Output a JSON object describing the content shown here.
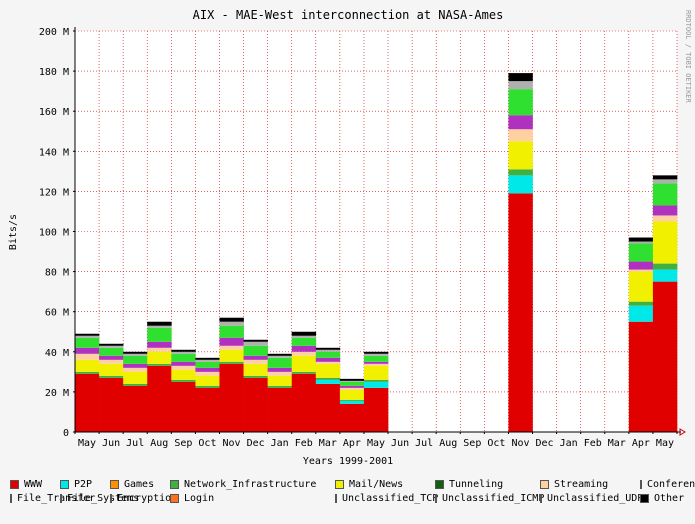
{
  "chart_data": {
    "type": "bar",
    "stacked": true,
    "title": "AIX - MAE-West interconnection at NASA-Ames",
    "xlabel": "Years 1999-2001",
    "ylabel": "Bits/s",
    "watermark": "RRDTOOL / TOBI OETIKER",
    "ylim": [
      0,
      200000000
    ],
    "yticks": [
      "0",
      "20 M",
      "40 M",
      "60 M",
      "80 M",
      "100 M",
      "120 M",
      "140 M",
      "160 M",
      "180 M",
      "200 M"
    ],
    "grid": true,
    "legend_position": "bottom",
    "categories": [
      "May",
      "Jun",
      "Jul",
      "Aug",
      "Sep",
      "Oct",
      "Nov",
      "Dec",
      "Jan",
      "Feb",
      "Mar",
      "Apr",
      "May",
      "Jun",
      "Jul",
      "Aug",
      "Sep",
      "Oct",
      "Nov",
      "Dec",
      "Jan",
      "Feb",
      "Mar",
      "Apr",
      "May"
    ],
    "series": [
      {
        "name": "WWW",
        "color": "#e00000",
        "values": [
          29,
          27,
          23,
          33,
          25,
          22,
          34,
          27,
          22,
          29,
          24,
          14,
          22,
          0,
          0,
          0,
          0,
          0,
          119,
          0,
          0,
          0,
          0,
          55,
          75
        ]
      },
      {
        "name": "P2P",
        "color": "#00e8e8",
        "values": [
          0,
          0,
          0,
          0,
          0,
          0,
          0,
          0,
          0,
          0,
          2,
          1.5,
          3,
          0,
          0,
          0,
          0,
          0,
          9,
          0,
          0,
          0,
          0,
          8,
          6
        ]
      },
      {
        "name": "Games",
        "color": "#ff9000",
        "values": [
          0,
          0,
          0,
          0,
          0,
          0,
          0,
          0,
          0,
          0,
          0,
          0,
          0,
          0,
          0,
          0,
          0,
          0,
          0,
          0,
          0,
          0,
          0,
          0,
          0
        ]
      },
      {
        "name": "Network_Infrastructure",
        "color": "#40b040",
        "values": [
          1,
          1,
          1,
          1,
          1,
          1,
          1,
          1,
          1,
          1,
          1,
          0.5,
          1,
          0,
          0,
          0,
          0,
          0,
          3,
          0,
          0,
          0,
          0,
          2,
          3
        ]
      },
      {
        "name": "Mail/News",
        "color": "#f0f000",
        "values": [
          6,
          6,
          6,
          6,
          5,
          5,
          6,
          6,
          5,
          8,
          7,
          5,
          7,
          0,
          0,
          0,
          0,
          0,
          14,
          0,
          0,
          0,
          0,
          15,
          21
        ]
      },
      {
        "name": "Tunneling",
        "color": "#106010",
        "values": [
          0,
          0,
          0,
          0,
          0,
          0,
          0,
          0,
          0,
          0,
          0,
          0,
          0,
          0,
          0,
          0,
          0,
          0,
          0,
          0,
          0,
          0,
          0,
          0,
          0
        ]
      },
      {
        "name": "Streaming",
        "color": "#ffd0a0",
        "values": [
          3,
          2,
          2,
          2,
          2,
          2,
          2,
          2,
          2,
          2,
          1,
          1,
          1,
          0,
          0,
          0,
          0,
          0,
          6,
          0,
          0,
          0,
          0,
          1,
          3
        ]
      },
      {
        "name": "Conferencing",
        "color": "#1a237e",
        "values": [
          0,
          0,
          0,
          0,
          0,
          0,
          0,
          0,
          0,
          0,
          0,
          0,
          0,
          0,
          0,
          0,
          0,
          0,
          0,
          0,
          0,
          0,
          0,
          0,
          0
        ]
      },
      {
        "name": "File_Transfer",
        "color": "#b030c0",
        "values": [
          3,
          2,
          2,
          3,
          2,
          2,
          4,
          2,
          2,
          3,
          2,
          1,
          1,
          0,
          0,
          0,
          0,
          0,
          7,
          0,
          0,
          0,
          0,
          4,
          5
        ]
      },
      {
        "name": "File_Systems",
        "color": "#f0a080",
        "values": [
          0,
          0,
          0,
          0,
          0,
          0,
          0,
          0,
          0,
          0,
          0,
          0,
          0,
          0,
          0,
          0,
          0,
          0,
          0,
          0,
          0,
          0,
          0,
          0,
          0
        ]
      },
      {
        "name": "Encryption",
        "color": "#2e7d32",
        "values": [
          0,
          0,
          0,
          0,
          0,
          0,
          0,
          0,
          0,
          0,
          0,
          0,
          0,
          0,
          0,
          0,
          0,
          0,
          0,
          0,
          0,
          0,
          0,
          0,
          0
        ]
      },
      {
        "name": "Login",
        "color": "#ff7020",
        "values": [
          0,
          0,
          0,
          0,
          0,
          0,
          0,
          0,
          0,
          0,
          0,
          0,
          0,
          0,
          0,
          0,
          0,
          0,
          0,
          0,
          0,
          0,
          0,
          0,
          0
        ]
      },
      {
        "name": "Unclassified_TCP",
        "color": "#30e030",
        "values": [
          5,
          4,
          4,
          7,
          4,
          3,
          6,
          5,
          5,
          4,
          3,
          2,
          3,
          0,
          0,
          0,
          0,
          0,
          13,
          0,
          0,
          0,
          0,
          9,
          11
        ]
      },
      {
        "name": "Unclassified_ICMP",
        "color": "#3070f0",
        "values": [
          0,
          0,
          0,
          0,
          0,
          0,
          0,
          0,
          0,
          0,
          0,
          0,
          0,
          0,
          0,
          0,
          0,
          0,
          0,
          0,
          0,
          0,
          0,
          0,
          0
        ]
      },
      {
        "name": "Unclassified_UDP",
        "color": "#b0b0b0",
        "values": [
          1,
          1,
          1,
          1,
          1,
          1,
          2,
          2,
          1,
          1,
          1,
          0.5,
          1,
          0,
          0,
          0,
          0,
          0,
          4,
          0,
          0,
          0,
          0,
          1,
          2
        ]
      },
      {
        "name": "Other",
        "color": "#000000",
        "values": [
          1,
          1,
          1,
          2,
          1,
          1,
          2,
          1,
          1,
          2,
          1,
          1,
          1,
          0,
          0,
          0,
          0,
          0,
          4,
          0,
          0,
          0,
          0,
          2,
          2
        ]
      }
    ]
  }
}
